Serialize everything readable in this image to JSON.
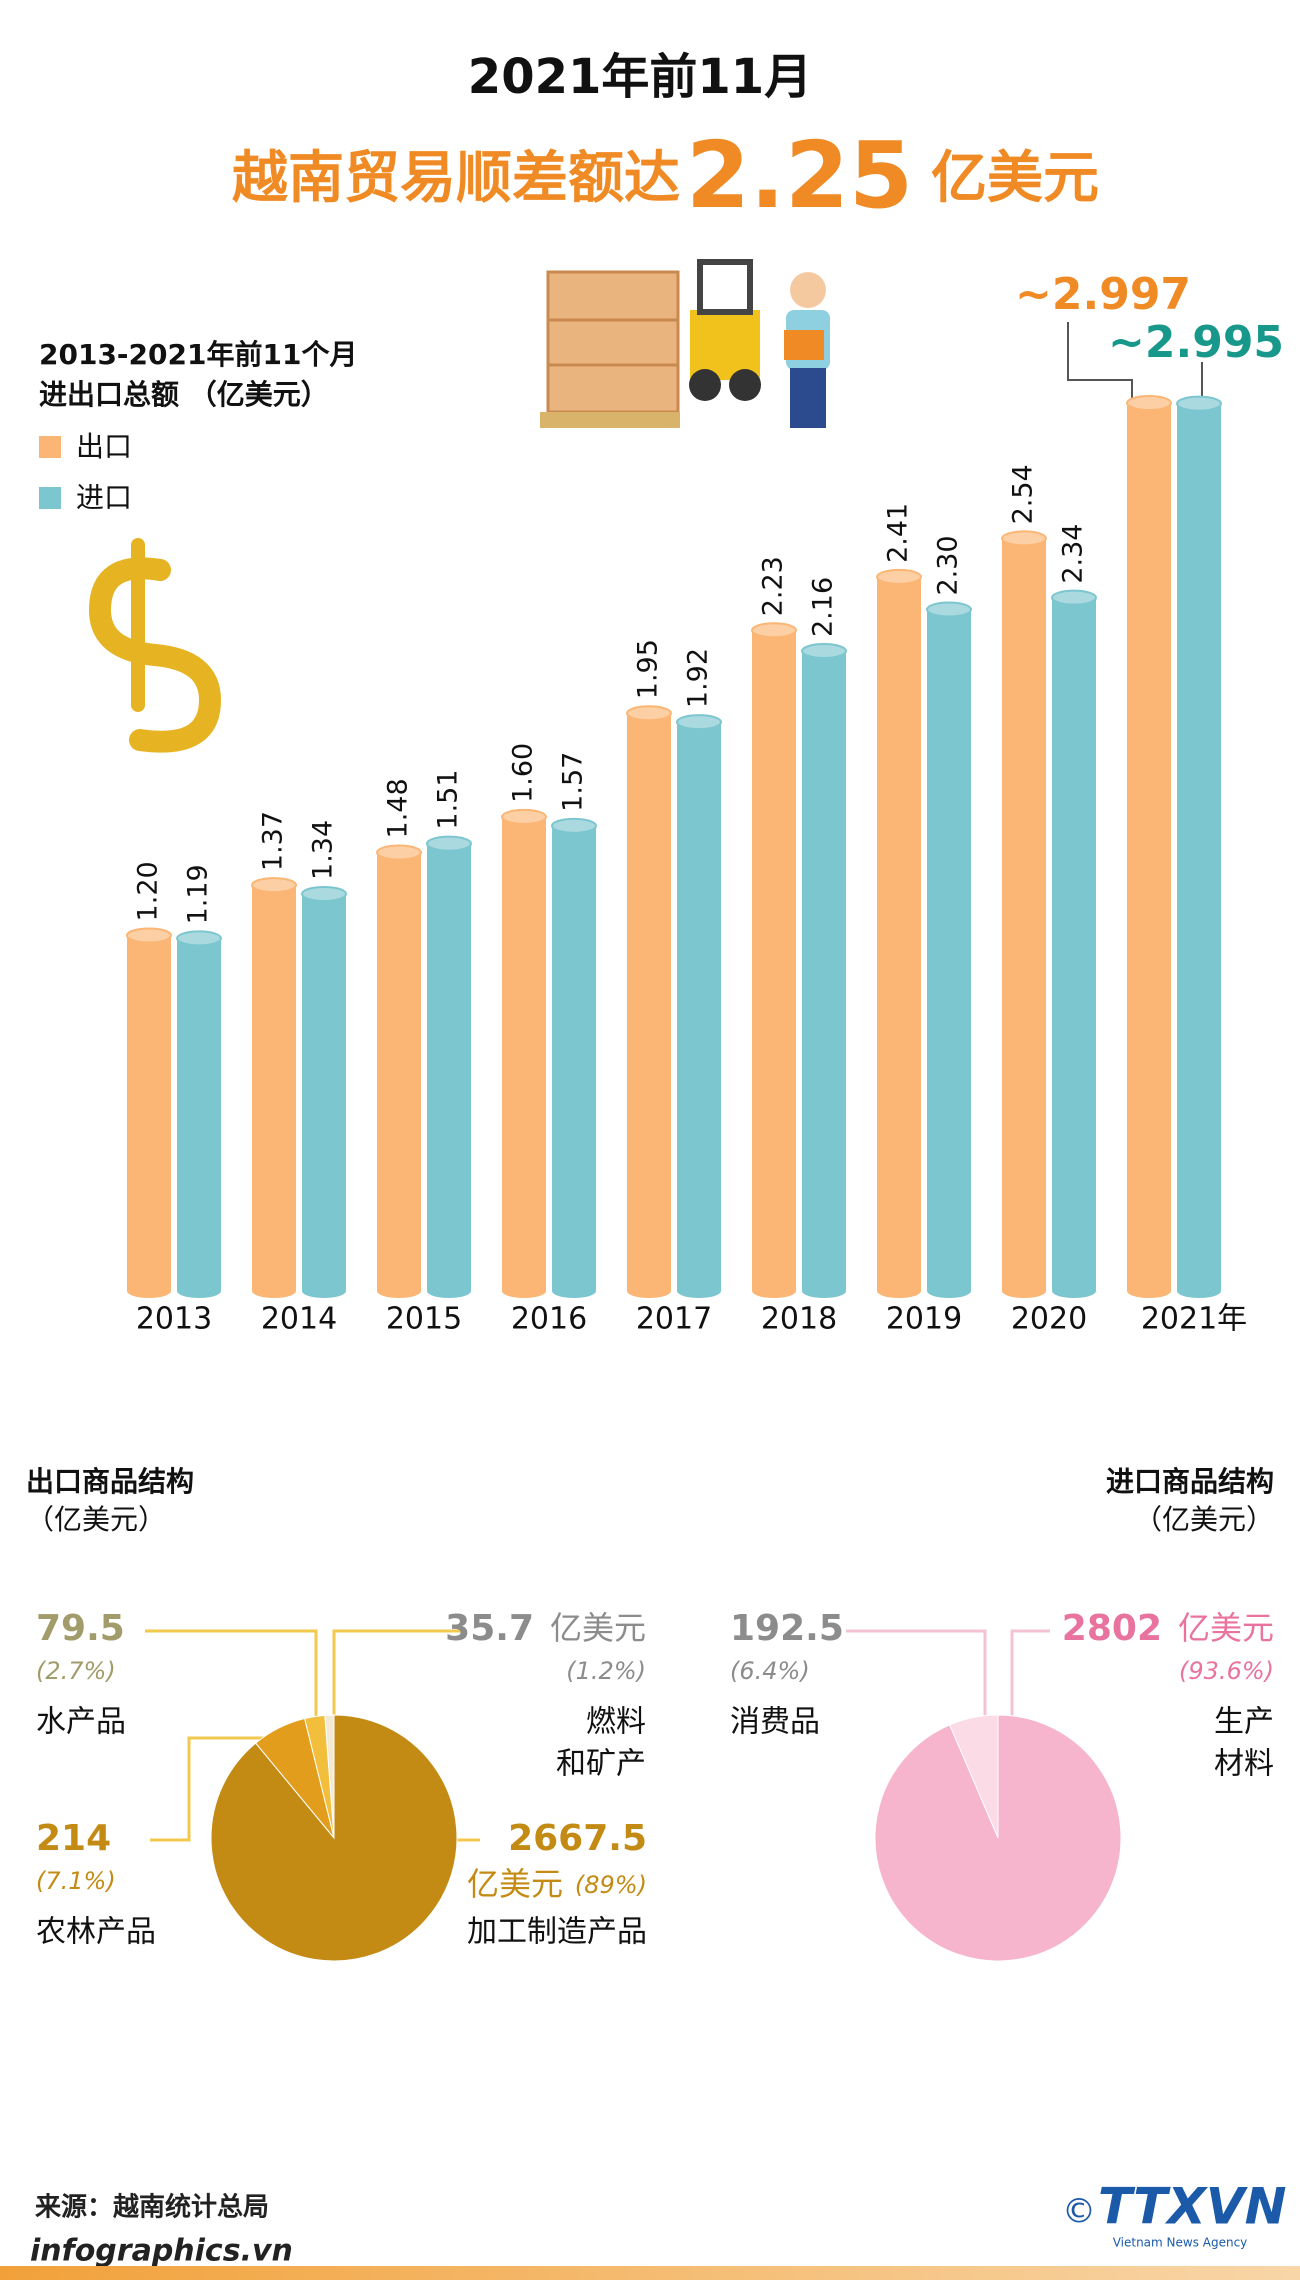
{
  "header": {
    "title": "2021年前11月",
    "headline": "越南贸易顺差额达",
    "highlight": "2.25",
    "unit": "亿美元"
  },
  "chart_data": [
    {
      "type": "bar",
      "note": [
        "2013-2021年前11个月",
        "进出口总额 （亿美元）"
      ],
      "categories": [
        "2013",
        "2014",
        "2015",
        "2016",
        "2017",
        "2018",
        "2019",
        "2020",
        "2021年"
      ],
      "series": [
        {
          "name": "出口",
          "color": "#fbb574",
          "values": [
            1.2,
            1.37,
            1.48,
            1.6,
            1.95,
            2.23,
            2.41,
            2.54,
            2.997
          ],
          "value_labels": [
            "1.20",
            "1.37",
            "1.48",
            "1.60",
            "1.95",
            "2.23",
            "2.41",
            "2.54",
            "~2.997"
          ],
          "label_color": "#f08a24"
        },
        {
          "name": "进口",
          "color": "#7cc6cf",
          "values": [
            1.19,
            1.34,
            1.51,
            1.57,
            1.92,
            2.16,
            2.3,
            2.34,
            2.995
          ],
          "value_labels": [
            "1.19",
            "1.34",
            "1.51",
            "1.57",
            "1.92",
            "2.16",
            "2.30",
            "2.34",
            "~2.995"
          ],
          "label_color": "#17988a"
        }
      ]
    },
    {
      "type": "pie",
      "title": "出口商品结构",
      "subtitle": "（亿美元）",
      "labels": [
        [
          "燃料",
          "和矿产"
        ],
        [
          "水产品"
        ],
        [
          "农林产品"
        ],
        [
          "加工制造产品"
        ]
      ],
      "values": [
        35.7,
        79.5,
        214,
        2667.5
      ],
      "value_labels": [
        "35.7",
        "79.5",
        "214",
        "2667.5"
      ],
      "units": [
        "亿美元",
        null,
        null,
        "亿美元"
      ],
      "percents": [
        1.2,
        2.7,
        7.1,
        89
      ],
      "percent_labels": [
        "(1.2%)",
        "(2.7%)",
        "(7.1%)",
        "(89%)"
      ],
      "colors": [
        "#f3ead6",
        "#f2bf3c",
        "#e39d1d",
        "#c48b14"
      ],
      "label_colors": [
        "#8c8c8c",
        "#a29c6a",
        "#c48b14",
        "#c48b14"
      ]
    },
    {
      "type": "pie",
      "title": "进口商品结构",
      "subtitle": "（亿美元）",
      "labels": [
        [
          "消费品"
        ],
        [
          "生产",
          "材料"
        ]
      ],
      "values": [
        192.5,
        2802
      ],
      "value_labels": [
        "192.5",
        "2802"
      ],
      "units": [
        null,
        "亿美元"
      ],
      "percents": [
        6.4,
        93.6
      ],
      "percent_labels": [
        "(6.4%)",
        "(93.6%)"
      ],
      "colors": [
        "#fbdbe6",
        "#f7b4cd"
      ],
      "label_colors": [
        "#8c8c8c",
        "#e9739f"
      ]
    }
  ],
  "footer": {
    "source": "来源：越南统计总局",
    "site": "infographics.vn",
    "copyright": "©",
    "logo": "TTXVN",
    "agency": "Vietnam News Agency"
  }
}
